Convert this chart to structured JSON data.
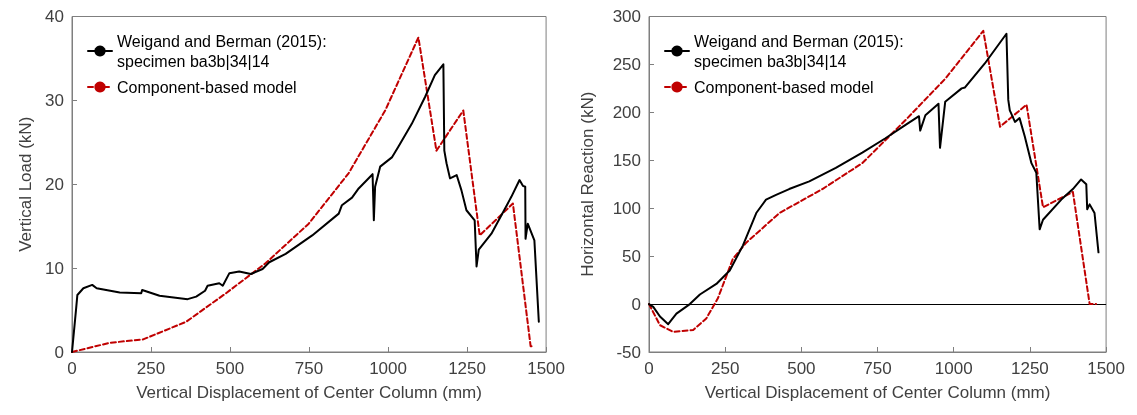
{
  "chart_data": [
    {
      "type": "line",
      "xlabel": "Vertical Displacement of Center Column (mm)",
      "ylabel": "Vertical Load (kN)",
      "xlim": [
        0,
        1500
      ],
      "xticks": [
        0,
        250,
        500,
        750,
        1000,
        1250,
        1500
      ],
      "ylim": [
        0,
        40
      ],
      "yticks": [
        0,
        10,
        20,
        30,
        40
      ],
      "grid": false,
      "legend": "top left",
      "marker": "none",
      "series": [
        {
          "name": "Weigand and Berman (2015): specimen ba3b|34|14",
          "color": "#000000",
          "line_style": "solid",
          "x": [
            0,
            12.6,
            17,
            36,
            64,
            78,
            151,
            219,
            222,
            277,
            366,
            393,
            421,
            429,
            466,
            477,
            498,
            529,
            566,
            603,
            624,
            676,
            760,
            844,
            854,
            886,
            907,
            951,
            955,
            959,
            975,
            1012,
            1033,
            1075,
            1117,
            1148,
            1175,
            1178,
            1185,
            1196,
            1217,
            1232,
            1248,
            1274,
            1280,
            1287,
            1327,
            1390,
            1416,
            1427,
            1434,
            1435,
            1442,
            1463,
            1477
          ],
          "values": [
            0,
            5.0,
            6.8,
            7.6,
            8.0,
            7.6,
            7.1,
            7.0,
            7.4,
            6.7,
            6.3,
            6.6,
            7.3,
            7.9,
            8.2,
            7.9,
            9.4,
            9.6,
            9.3,
            9.9,
            10.7,
            11.7,
            13.9,
            16.5,
            17.5,
            18.4,
            19.5,
            21.2,
            15.7,
            19.7,
            22.1,
            23.2,
            24.5,
            27.2,
            30.4,
            33.0,
            34.3,
            24.0,
            22.5,
            20.7,
            21.1,
            19.3,
            16.9,
            15.7,
            10.2,
            12.2,
            14.1,
            18.5,
            20.5,
            19.8,
            19.7,
            13.5,
            15.3,
            13.3,
            3.6
          ]
        },
        {
          "name": "Component-based model",
          "color": "#c00000",
          "line_style": "dashed",
          "x": [
            0,
            120,
            225,
            361,
            487,
            613,
            749,
            875,
            991,
            1096,
            1153,
            1238,
            1290,
            1395,
            1451,
            1463
          ],
          "values": [
            0,
            1.1,
            1.5,
            3.6,
            7.0,
            10.6,
            15.3,
            21.3,
            28.8,
            37.5,
            24.0,
            28.8,
            13.9,
            17.7,
            0.7,
            0.7
          ]
        }
      ]
    },
    {
      "type": "line",
      "xlabel": "Vertical Displacement of Center Column (mm)",
      "ylabel": "Horizontal Reaction (kN)",
      "xlim": [
        0,
        1500
      ],
      "xticks": [
        0,
        250,
        500,
        750,
        1000,
        1250,
        1500
      ],
      "ylim": [
        -50,
        300
      ],
      "yticks": [
        -50,
        0,
        50,
        100,
        150,
        200,
        250,
        300
      ],
      "grid": false,
      "legend": "top left",
      "marker": "none",
      "ref_lines": [
        {
          "axis": "y",
          "value": 0,
          "color": "#000000"
        }
      ],
      "series": [
        {
          "name": "Weigand and Berman (2015): specimen ba3b|34|14",
          "color": "#000000",
          "line_style": "solid",
          "x": [
            0,
            14,
            36,
            63,
            90,
            134,
            167,
            221,
            265,
            308,
            352,
            384,
            417,
            460,
            526,
            613,
            700,
            776,
            842,
            886,
            890,
            907,
            950,
            955,
            972,
            1026,
            1037,
            1102,
            1173,
            1179,
            1184,
            1201,
            1216,
            1233,
            1255,
            1271,
            1282,
            1293,
            1353,
            1391,
            1418,
            1435,
            1438,
            1446,
            1462,
            1475
          ],
          "values": [
            0,
            -3,
            -13,
            -21,
            -10,
            0,
            10,
            21,
            35,
            61,
            95,
            109,
            114,
            120,
            128,
            142,
            158,
            173,
            187,
            196,
            181,
            197,
            209,
            163,
            211,
            225,
            226,
            251,
            282,
            213,
            202,
            190,
            194,
            175,
            147,
            137,
            78,
            88,
            109,
            120,
            130,
            125,
            99,
            104,
            95,
            54
          ]
        },
        {
          "name": "Component-based model",
          "color": "#c00000",
          "line_style": "dashed",
          "x": [
            0,
            36,
            79,
            145,
            188,
            226,
            275,
            319,
            428,
            569,
            700,
            842,
            972,
            1097,
            1152,
            1239,
            1293,
            1391,
            1446,
            1467
          ],
          "values": [
            0,
            -22,
            -29,
            -27,
            -15,
            6,
            47,
            64,
            95,
            120,
            147,
            192,
            235,
            285,
            185,
            208,
            101,
            117,
            0,
            0
          ]
        }
      ]
    }
  ]
}
